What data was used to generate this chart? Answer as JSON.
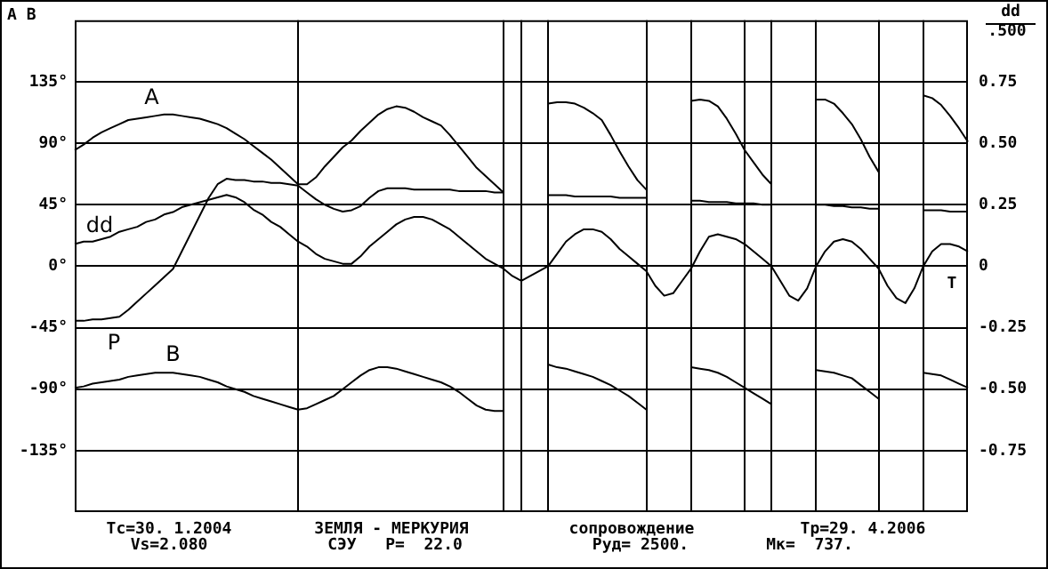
{
  "chart_data": {
    "type": "line",
    "ylabel": "A B",
    "y2label": "dd\n.500",
    "categories": [
      null,
      null,
      null,
      null,
      null,
      null,
      null,
      null,
      null,
      null,
      null,
      null,
      null,
      null,
      null,
      null,
      null,
      null,
      null,
      null,
      null,
      null,
      null,
      null,
      null,
      null,
      null,
      null,
      null,
      null,
      null,
      null,
      null,
      null,
      null,
      null,
      null,
      null,
      null,
      null,
      null,
      null,
      null,
      null,
      null,
      null,
      null,
      null,
      null,
      null,
      null,
      null,
      null,
      null,
      null,
      null,
      null,
      null,
      null,
      null,
      null,
      null,
      null,
      null,
      null,
      null,
      null,
      null,
      null,
      null,
      null,
      null,
      null,
      null,
      null,
      null,
      null,
      null,
      null,
      null,
      null,
      null,
      null,
      null,
      null,
      null,
      null,
      null,
      null,
      null,
      null,
      null,
      null,
      null,
      null,
      null,
      null,
      null,
      null,
      null,
      null
    ],
    "ylim": [
      -180,
      180
    ],
    "yticks": [
      {
        "value": 135,
        "label": "135°"
      },
      {
        "value": 90,
        "label": "90°"
      },
      {
        "value": 45,
        "label": "45°"
      },
      {
        "value": 0,
        "label": "0°"
      },
      {
        "value": -45,
        "label": "-45°"
      },
      {
        "value": -90,
        "label": "-90°"
      },
      {
        "value": -135,
        "label": "-135°"
      }
    ],
    "y2lim": [
      -1,
      1
    ],
    "y2ticks": [
      {
        "value": 0.75,
        "label": "0.75"
      },
      {
        "value": 0.5,
        "label": "0.50"
      },
      {
        "value": 0.25,
        "label": "0.25"
      },
      {
        "value": 0,
        "label": "0"
      },
      {
        "value": -0.25,
        "label": "-0.25"
      },
      {
        "value": -0.5,
        "label": "-0.50"
      },
      {
        "value": -0.75,
        "label": "-0.75"
      }
    ],
    "grid": true,
    "legend": false,
    "marker": "none",
    "line_style": "solid",
    "series": [
      {
        "name": "A",
        "color": "#000000",
        "values": [
          85,
          89,
          94,
          98,
          101,
          104,
          107,
          108,
          109,
          110,
          111,
          111,
          110,
          109,
          108,
          106,
          104,
          101,
          97,
          93,
          88,
          83,
          78,
          72,
          66,
          60,
          60,
          65,
          73,
          80,
          87,
          92,
          99,
          105,
          111,
          115,
          117,
          116,
          113,
          109,
          106,
          103,
          96,
          88,
          80,
          72,
          66,
          60,
          54,
          null,
          null,
          null,
          null,
          119,
          120,
          120,
          119,
          116,
          112,
          107,
          96,
          84,
          73,
          63,
          56,
          null,
          null,
          null,
          null,
          121,
          122,
          121,
          117,
          108,
          97,
          85,
          76,
          67,
          60,
          null,
          null,
          null,
          null,
          122,
          122,
          119,
          112,
          104,
          93,
          80,
          69,
          null,
          null,
          null,
          null,
          125,
          123,
          118,
          110,
          101,
          91
        ]
      },
      {
        "name": "dd",
        "color": "#000000",
        "axis": "y2",
        "values": [
          0.09,
          0.1,
          0.1,
          0.11,
          0.12,
          0.14,
          0.15,
          0.16,
          0.18,
          0.19,
          0.21,
          0.22,
          0.24,
          0.25,
          0.26,
          0.27,
          0.28,
          0.29,
          0.28,
          0.26,
          0.23,
          0.21,
          0.18,
          0.16,
          0.13,
          0.1,
          0.08,
          0.05,
          0.03,
          0.02,
          0.01,
          0.01,
          0.04,
          0.08,
          0.11,
          0.14,
          0.17,
          0.19,
          0.2,
          0.2,
          0.19,
          0.17,
          0.15,
          0.12,
          0.09,
          0.06,
          0.03,
          0.01,
          -0.01,
          -0.04,
          -0.06,
          -0.04,
          -0.02,
          0,
          0.05,
          0.1,
          0.13,
          0.15,
          0.15,
          0.14,
          0.11,
          0.07,
          0.04,
          0.01,
          -0.02,
          -0.08,
          -0.12,
          -0.11,
          -0.06,
          -0.01,
          0.06,
          0.12,
          0.13,
          0.12,
          0.11,
          0.09,
          0.06,
          0.03,
          0,
          -0.06,
          -0.12,
          -0.14,
          -0.09,
          0,
          0.06,
          0.1,
          0.11,
          0.1,
          0.07,
          0.03,
          -0.01,
          -0.08,
          -0.13,
          -0.15,
          -0.09,
          0,
          0.06,
          0.09,
          0.09,
          0.08,
          0.06
        ]
      },
      {
        "name": "P",
        "color": "#000000",
        "values": [
          -40,
          -40,
          -39,
          -39,
          -38,
          -37,
          -32,
          -26,
          -20,
          -14,
          -8,
          -2,
          11,
          24,
          37,
          50,
          60,
          64,
          63,
          63,
          62,
          62,
          61,
          61,
          60,
          59,
          54,
          49,
          45,
          42,
          40,
          41,
          44,
          50,
          55,
          57,
          57,
          57,
          56,
          56,
          56,
          56,
          56,
          55,
          55,
          55,
          55,
          54,
          54,
          null,
          null,
          null,
          null,
          52,
          52,
          52,
          51,
          51,
          51,
          51,
          51,
          50,
          50,
          50,
          50,
          null,
          null,
          null,
          null,
          48,
          48,
          47,
          47,
          47,
          46,
          46,
          46,
          45,
          45,
          null,
          null,
          null,
          null,
          45,
          45,
          44,
          44,
          43,
          43,
          42,
          42,
          null,
          null,
          null,
          null,
          41,
          41,
          41,
          40,
          40,
          40
        ]
      },
      {
        "name": "B",
        "color": "#000000",
        "values": [
          -89,
          -88,
          -86,
          -85,
          -84,
          -83,
          -81,
          -80,
          -79,
          -78,
          -78,
          -78,
          -79,
          -80,
          -81,
          -83,
          -85,
          -88,
          -90,
          -92,
          -95,
          -97,
          -99,
          -101,
          -103,
          -105,
          -104,
          -101,
          -98,
          -95,
          -90,
          -85,
          -80,
          -76,
          -74,
          -74,
          -75,
          -77,
          -79,
          -81,
          -83,
          -85,
          -88,
          -92,
          -97,
          -102,
          -105,
          -106,
          -106,
          null,
          null,
          null,
          null,
          -72,
          -74,
          -75,
          -77,
          -79,
          -81,
          -84,
          -87,
          -91,
          -95,
          -100,
          -105,
          null,
          null,
          null,
          null,
          -74,
          -75,
          -76,
          -78,
          -81,
          -85,
          -89,
          -93,
          -97,
          -101,
          null,
          null,
          null,
          null,
          -76,
          -77,
          -78,
          -80,
          -82,
          -87,
          -92,
          -97,
          null,
          null,
          null,
          null,
          -78,
          -79,
          -80,
          -83,
          -86,
          -89
        ]
      }
    ],
    "annotations": [
      "Tc=30. 1.2004",
      "Vs=2.080",
      "ЗЕМЛЯ - МЕРКУРИЯ",
      "СЭУ   P=  22.0",
      "сопровождение",
      "Руд= 2500.",
      "Tp=29. 4.2006",
      "Mк=  737.",
      "T"
    ]
  }
}
